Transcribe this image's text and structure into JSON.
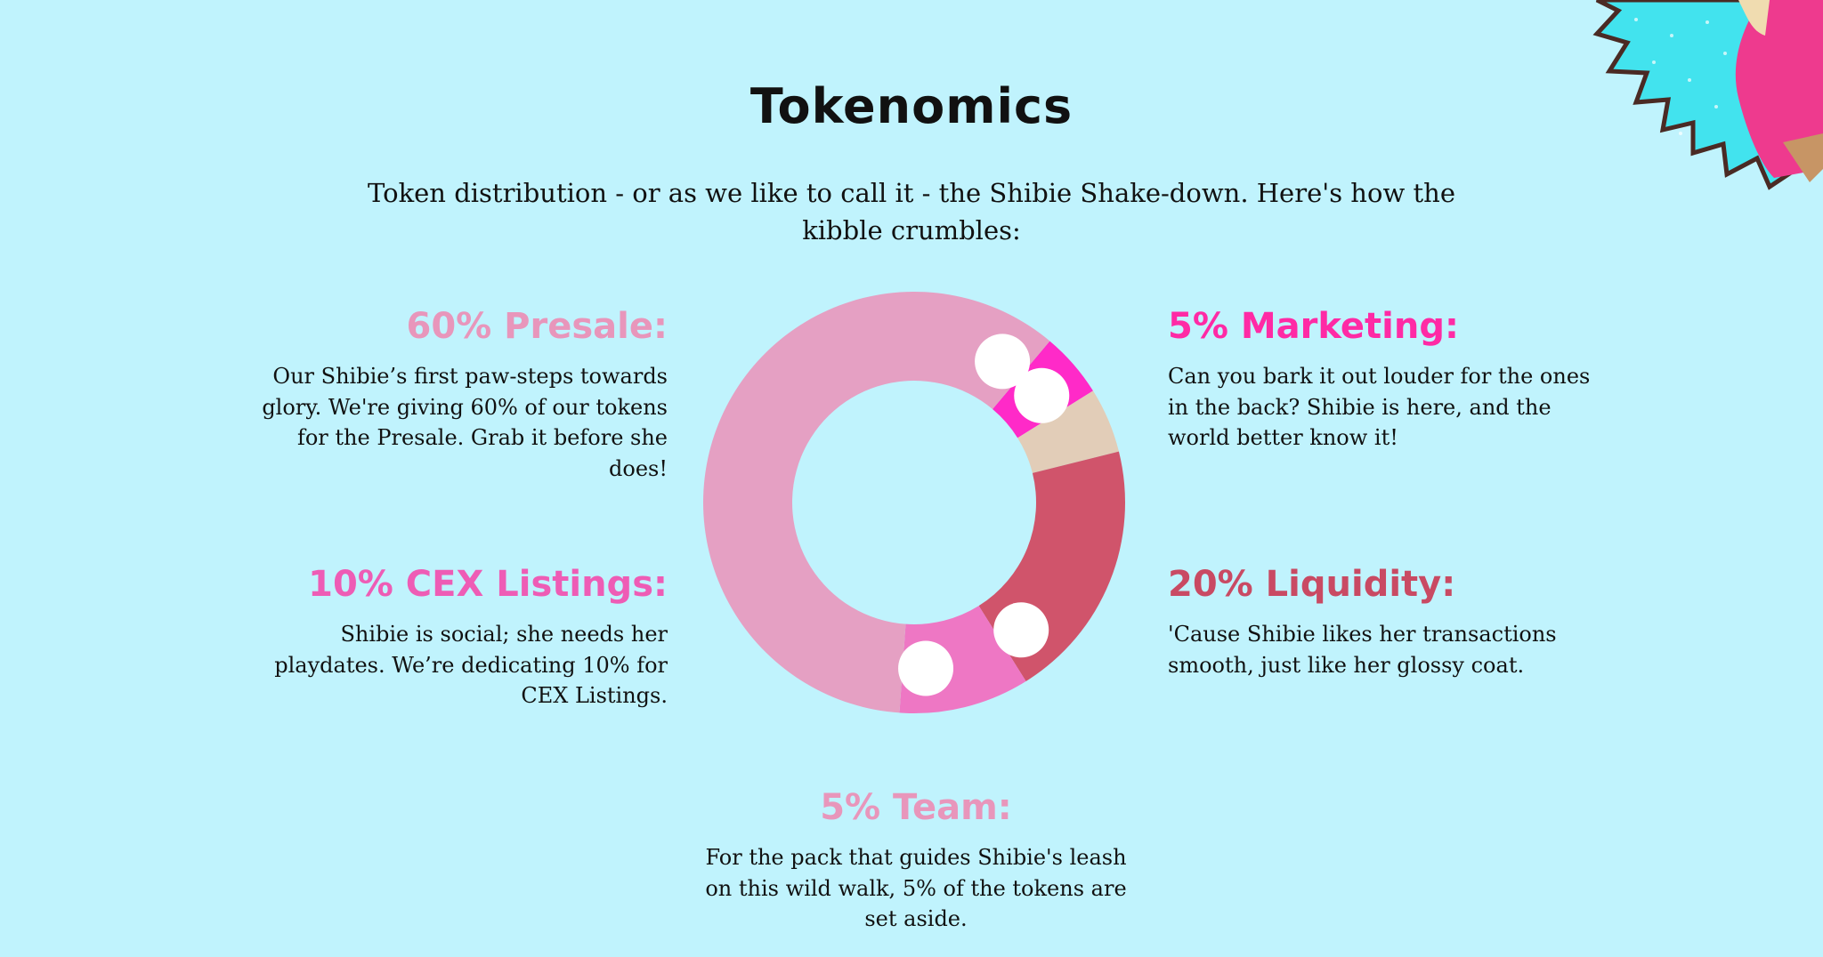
{
  "header": {
    "title": "Tokenomics",
    "subtitle": "Token distribution - or as we like to call it - the Shibie Shake-down. Here's how the kibble crumbles:"
  },
  "sections": {
    "presale": {
      "heading": "60% Presale:",
      "body": "Our Shibie’s first paw-steps towards glory. We're giving 60% of our tokens for the Presale. Grab it before she does!",
      "color": "#e896bb"
    },
    "cex": {
      "heading": "10% CEX Listings:",
      "body": "Shibie is social; she needs her playdates. We’re dedicating 10% for CEX Listings.",
      "color": "#ee5cb5"
    },
    "marketing": {
      "heading": "5% Marketing:",
      "body": "Can you bark it out louder for the ones in the back? Shibie is here, and the world better know it!",
      "color": "#ff2aa5"
    },
    "liquidity": {
      "heading": "20% Liquidity:",
      "body": "'Cause Shibie likes her transactions smooth, just like her glossy coat.",
      "color": "#c94a63"
    },
    "team": {
      "heading": "5% Team:",
      "body": "For the pack that guides Shibie's leash on this wild walk, 5% of the tokens are set aside.",
      "color": "#e896bb"
    }
  },
  "chart_data": {
    "type": "pie",
    "categories": [
      "Marketing",
      "Team",
      "Liquidity",
      "CEX Listings",
      "Presale"
    ],
    "values": [
      5,
      5,
      20,
      10,
      60
    ],
    "colors": [
      "#ff2ac8",
      "#e2cdb8",
      "#d0546b",
      "#ee77c4",
      "#e5a0c3"
    ]
  },
  "decoration": {
    "corner_icon": "starburst-mascot-badge",
    "burst_color": "#42e3ee",
    "outline_color": "#4a2a24"
  }
}
